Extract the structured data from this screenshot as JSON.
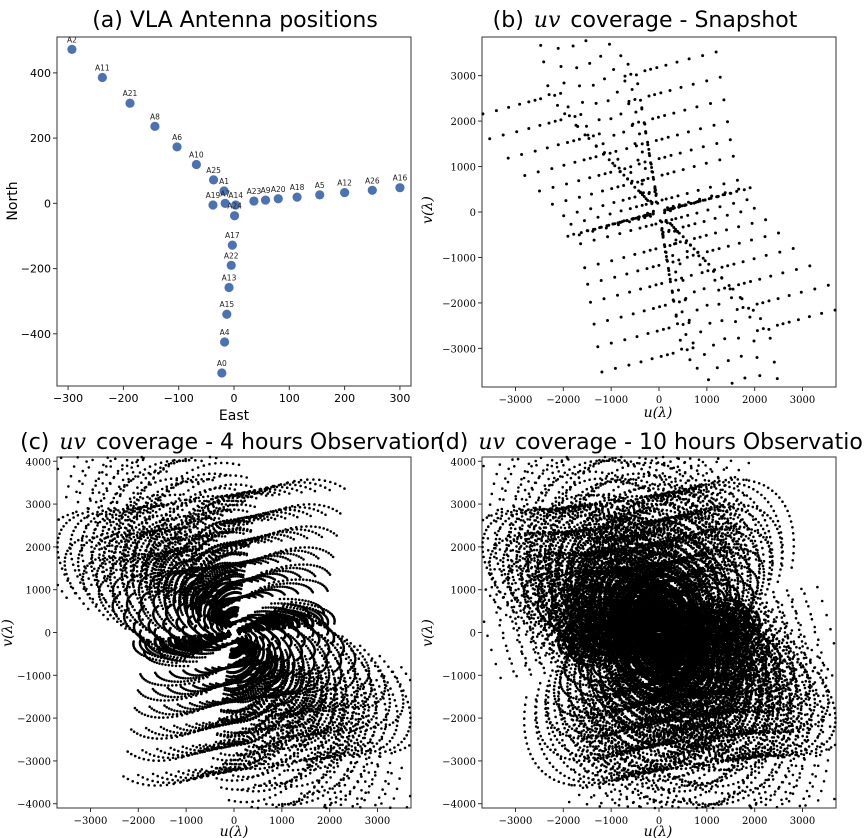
{
  "chart_data": [
    {
      "id": "a",
      "type": "scatter",
      "title": "(a) VLA Antenna positions",
      "xlabel": "East",
      "ylabel": "North",
      "xlim": [
        -320,
        320
      ],
      "ylim": [
        -560,
        510
      ],
      "xticks": [
        -300,
        -200,
        -100,
        0,
        100,
        200,
        300
      ],
      "yticks": [
        -400,
        -200,
        0,
        200,
        400
      ],
      "grid": false,
      "point_color": "#4c72b0",
      "points": [
        {
          "label": "A2",
          "x": -293,
          "y": 472
        },
        {
          "label": "A11",
          "x": -238,
          "y": 386
        },
        {
          "label": "A21",
          "x": -188,
          "y": 307
        },
        {
          "label": "A8",
          "x": -143,
          "y": 236
        },
        {
          "label": "A6",
          "x": -103,
          "y": 173
        },
        {
          "label": "A10",
          "x": -68,
          "y": 119
        },
        {
          "label": "A25",
          "x": -37,
          "y": 72
        },
        {
          "label": "A1",
          "x": -18,
          "y": 38
        },
        {
          "label": "A19",
          "x": -38,
          "y": -5
        },
        {
          "label": "A7",
          "x": -16,
          "y": 0
        },
        {
          "label": "A14",
          "x": 3,
          "y": -5
        },
        {
          "label": "A24",
          "x": 1,
          "y": -38
        },
        {
          "label": "A17",
          "x": -3,
          "y": -128
        },
        {
          "label": "A22",
          "x": -5,
          "y": -190
        },
        {
          "label": "A13",
          "x": -9,
          "y": -258
        },
        {
          "label": "A15",
          "x": -13,
          "y": -340
        },
        {
          "label": "A4",
          "x": -17,
          "y": -425
        },
        {
          "label": "A0",
          "x": -22,
          "y": -520
        },
        {
          "label": "A23",
          "x": 36,
          "y": 7
        },
        {
          "label": "A9",
          "x": 57,
          "y": 10
        },
        {
          "label": "A20",
          "x": 80,
          "y": 14
        },
        {
          "label": "A18",
          "x": 114,
          "y": 19
        },
        {
          "label": "A5",
          "x": 155,
          "y": 26
        },
        {
          "label": "A12",
          "x": 200,
          "y": 33
        },
        {
          "label": "A26",
          "x": 250,
          "y": 40
        },
        {
          "label": "A16",
          "x": 300,
          "y": 48
        }
      ]
    },
    {
      "id": "b",
      "type": "scatter",
      "title_prefix": "(b)",
      "title_math": "uv",
      "title_suffix": "coverage - Snapshot",
      "xlabel": "u(λ)",
      "ylabel": "v(λ)",
      "xlim": [
        -3700,
        3700
      ],
      "ylim": [
        -3850,
        3850
      ],
      "xticks": [
        -3000,
        -2000,
        -1000,
        0,
        1000,
        2000,
        3000
      ],
      "yticks": [
        -3000,
        -2000,
        -1000,
        0,
        1000,
        2000,
        3000
      ],
      "grid": false,
      "point_color": "#000000",
      "observation_hours": 0
    },
    {
      "id": "c",
      "type": "scatter",
      "title_prefix": "(c)",
      "title_math": "uv",
      "title_suffix": "coverage - 4 hours Observation",
      "xlabel": "u(λ)",
      "ylabel": "v(λ)",
      "xlim": [
        -3700,
        3700
      ],
      "ylim": [
        -4100,
        4100
      ],
      "xticks": [
        -3000,
        -2000,
        -1000,
        0,
        1000,
        2000,
        3000
      ],
      "yticks": [
        -4000,
        -3000,
        -2000,
        -1000,
        0,
        1000,
        2000,
        3000,
        4000
      ],
      "grid": false,
      "point_color": "#000000",
      "observation_hours": 4
    },
    {
      "id": "d",
      "type": "scatter",
      "title_prefix": "(d)",
      "title_math": "uv",
      "title_suffix": "coverage - 10 hours Observation",
      "xlabel": "u(λ)",
      "ylabel": "v(λ)",
      "xlim": [
        -3700,
        3700
      ],
      "ylim": [
        -4100,
        4100
      ],
      "xticks": [
        -3000,
        -2000,
        -1000,
        0,
        1000,
        2000,
        3000
      ],
      "yticks": [
        -4000,
        -3000,
        -2000,
        -1000,
        0,
        1000,
        2000,
        3000,
        4000
      ],
      "grid": false,
      "point_color": "#000000",
      "observation_hours": 10
    }
  ]
}
